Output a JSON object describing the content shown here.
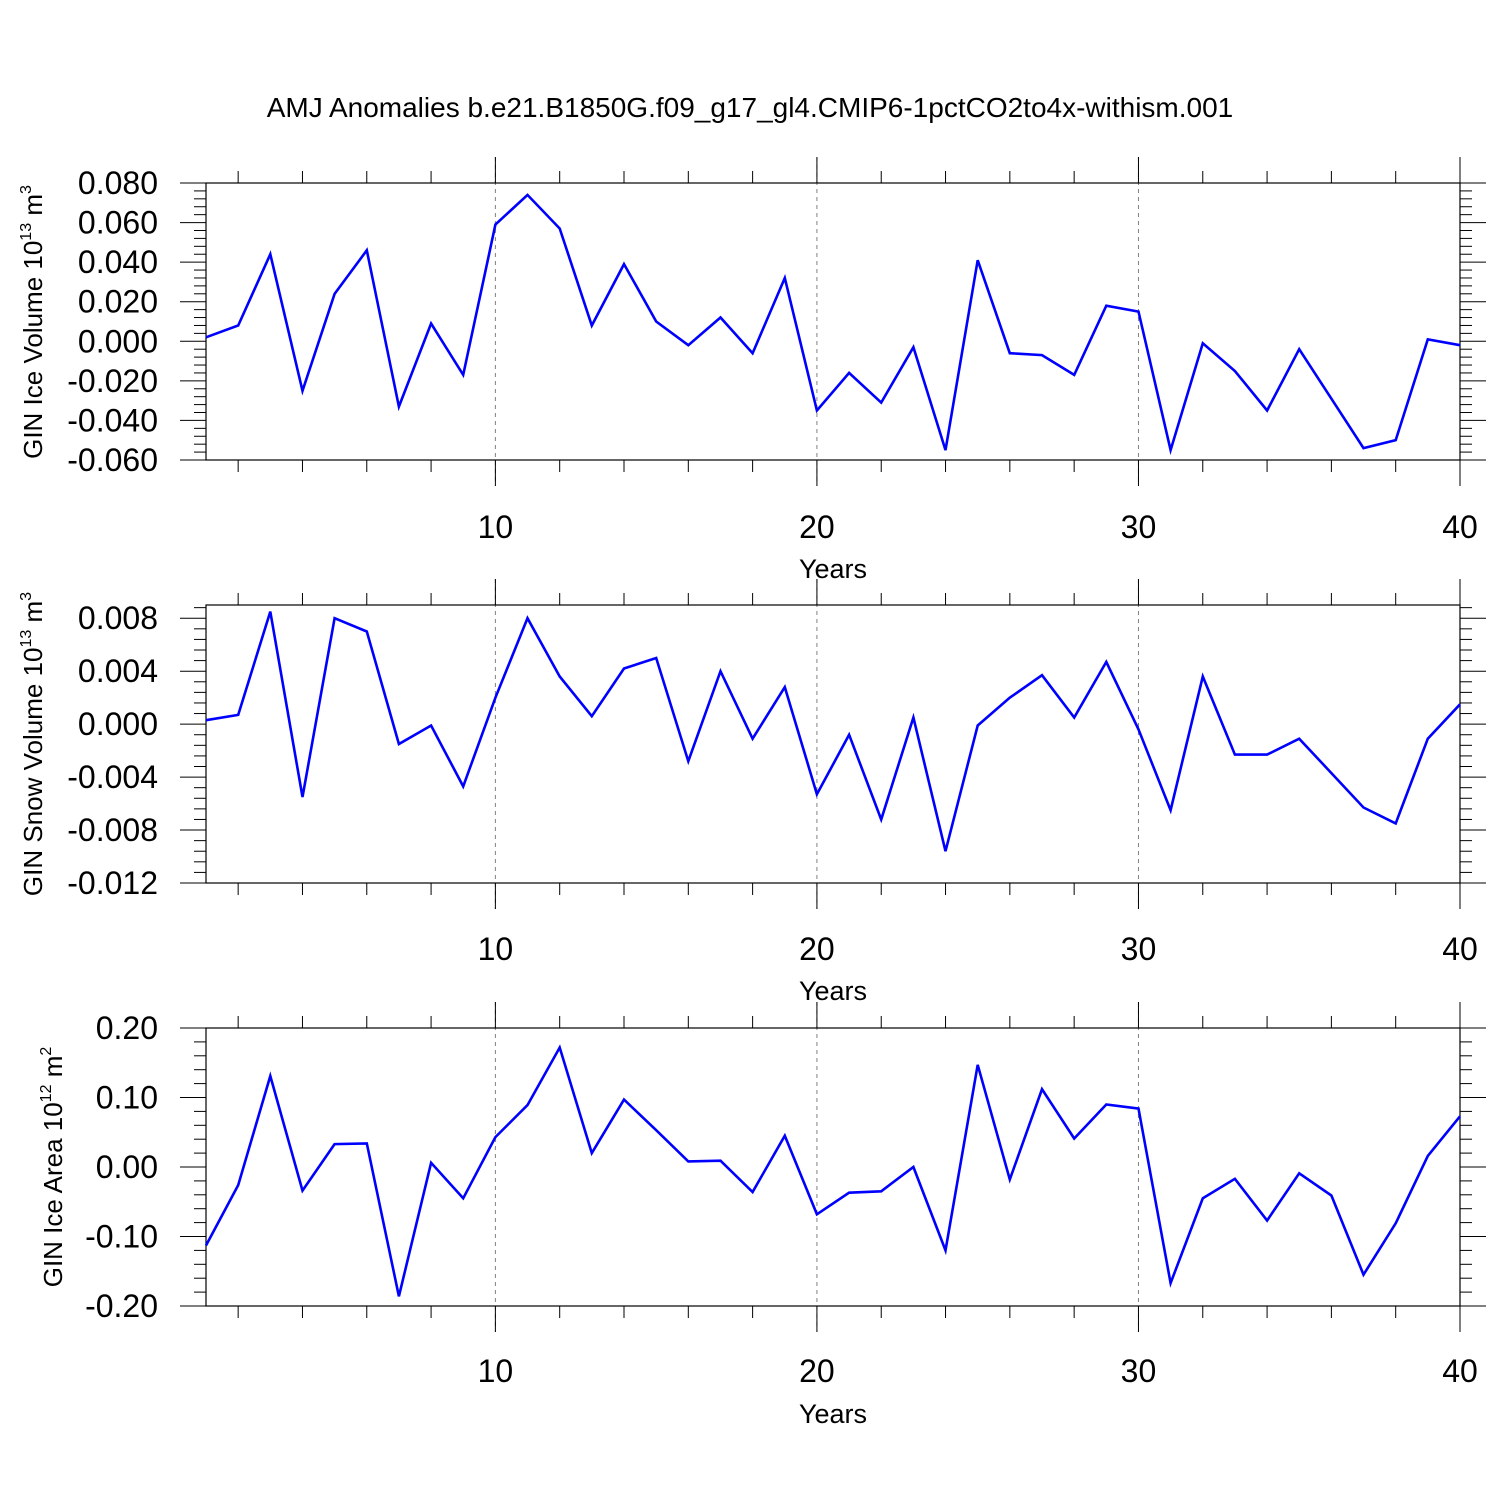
{
  "figure_title": "AMJ Anomalies b.e21.B1850G.f09_g17_gl4.CMIP6-1pctCO2to4x-withism.001",
  "colors": {
    "line": "#0000ff",
    "axis": "#000000",
    "grid": "#808080"
  },
  "chart_data": [
    {
      "type": "line",
      "ylabel_main": "GIN Ice Volume 10",
      "ylabel_sup": "13",
      "ylabel_unit": " m",
      "ylabel_unit_sup": "3",
      "xlabel": "Years",
      "xlim": [
        1,
        40
      ],
      "ylim": [
        -0.06,
        0.08
      ],
      "xticks": [
        10,
        20,
        30,
        40
      ],
      "xtick_labels": [
        "10",
        "20",
        "30",
        "40"
      ],
      "yticks": [
        -0.06,
        -0.04,
        -0.02,
        0.0,
        0.02,
        0.04,
        0.06,
        0.08
      ],
      "ytick_labels": [
        "-0.060",
        "-0.040",
        "-0.020",
        "0.000",
        "0.020",
        "0.040",
        "0.060",
        "0.080"
      ],
      "grid_x": [
        10,
        20,
        30
      ],
      "x": [
        1,
        2,
        3,
        4,
        5,
        6,
        7,
        8,
        9,
        10,
        11,
        12,
        13,
        14,
        15,
        16,
        17,
        18,
        19,
        20,
        21,
        22,
        23,
        24,
        25,
        26,
        27,
        28,
        29,
        30,
        31,
        32,
        33,
        34,
        35,
        36,
        37,
        38,
        39,
        40
      ],
      "values": [
        0.002,
        0.008,
        0.044,
        -0.025,
        0.024,
        0.046,
        -0.033,
        0.009,
        -0.017,
        0.059,
        0.074,
        0.057,
        0.008,
        0.039,
        0.01,
        -0.002,
        0.012,
        -0.006,
        0.032,
        -0.035,
        -0.016,
        -0.031,
        -0.003,
        -0.055,
        0.041,
        -0.006,
        -0.007,
        -0.017,
        0.018,
        0.015,
        -0.055,
        -0.001,
        -0.015,
        -0.035,
        -0.004,
        -0.029,
        -0.054,
        -0.05,
        0.001,
        -0.002
      ]
    },
    {
      "type": "line",
      "ylabel_main": "GIN Snow Volume 10",
      "ylabel_sup": "13",
      "ylabel_unit": " m",
      "ylabel_unit_sup": "3",
      "xlabel": "Years",
      "xlim": [
        1,
        40
      ],
      "ylim": [
        -0.012,
        0.009
      ],
      "xticks": [
        10,
        20,
        30,
        40
      ],
      "xtick_labels": [
        "10",
        "20",
        "30",
        "40"
      ],
      "yticks": [
        -0.012,
        -0.008,
        -0.004,
        0.0,
        0.004,
        0.008
      ],
      "ytick_labels": [
        "-0.012",
        "-0.008",
        "-0.004",
        "0.000",
        "0.004",
        "0.008"
      ],
      "grid_x": [
        10,
        20,
        30
      ],
      "x": [
        1,
        2,
        3,
        4,
        5,
        6,
        7,
        8,
        9,
        10,
        11,
        12,
        13,
        14,
        15,
        16,
        17,
        18,
        19,
        20,
        21,
        22,
        23,
        24,
        25,
        26,
        27,
        28,
        29,
        30,
        31,
        32,
        33,
        34,
        35,
        36,
        37,
        38,
        39,
        40
      ],
      "values": [
        0.0003,
        0.0007,
        0.0085,
        -0.0055,
        0.008,
        0.007,
        -0.0015,
        -0.0001,
        -0.0047,
        0.002,
        0.008,
        0.0036,
        0.0006,
        0.0042,
        0.005,
        -0.0028,
        0.004,
        -0.0011,
        0.0028,
        -0.0053,
        -0.0008,
        -0.0072,
        0.0005,
        -0.0096,
        -0.0001,
        0.002,
        0.0037,
        0.0005,
        0.0047,
        -0.0004,
        -0.0065,
        0.0036,
        -0.0023,
        -0.0023,
        -0.0011,
        -0.0037,
        -0.0063,
        -0.0075,
        -0.0011,
        0.0015
      ]
    },
    {
      "type": "line",
      "ylabel_main": "GIN Ice Area 10",
      "ylabel_sup": "12",
      "ylabel_unit": " m",
      "ylabel_unit_sup": "2",
      "xlabel": "Years",
      "xlim": [
        1,
        40
      ],
      "ylim": [
        -0.2,
        0.2
      ],
      "xticks": [
        10,
        20,
        30,
        40
      ],
      "xtick_labels": [
        "10",
        "20",
        "30",
        "40"
      ],
      "yticks": [
        -0.2,
        -0.1,
        0.0,
        0.1,
        0.2
      ],
      "ytick_labels": [
        "-0.20",
        "-0.10",
        "0.00",
        "0.10",
        "0.20"
      ],
      "grid_x": [
        10,
        20,
        30
      ],
      "x": [
        1,
        2,
        3,
        4,
        5,
        6,
        7,
        8,
        9,
        10,
        11,
        12,
        13,
        14,
        15,
        16,
        17,
        18,
        19,
        20,
        21,
        22,
        23,
        24,
        25,
        26,
        27,
        28,
        29,
        30,
        31,
        32,
        33,
        34,
        35,
        36,
        37,
        38,
        39,
        40
      ],
      "values": [
        -0.113,
        -0.026,
        0.131,
        -0.034,
        0.033,
        0.034,
        -0.186,
        0.006,
        -0.045,
        0.043,
        0.089,
        0.172,
        0.02,
        0.097,
        0.053,
        0.008,
        0.009,
        -0.036,
        0.045,
        -0.068,
        -0.037,
        -0.035,
        0.0,
        -0.12,
        0.147,
        -0.018,
        0.112,
        0.041,
        0.09,
        0.084,
        -0.167,
        -0.045,
        -0.017,
        -0.077,
        -0.009,
        -0.041,
        -0.155,
        -0.081,
        0.016,
        0.073
      ]
    }
  ]
}
